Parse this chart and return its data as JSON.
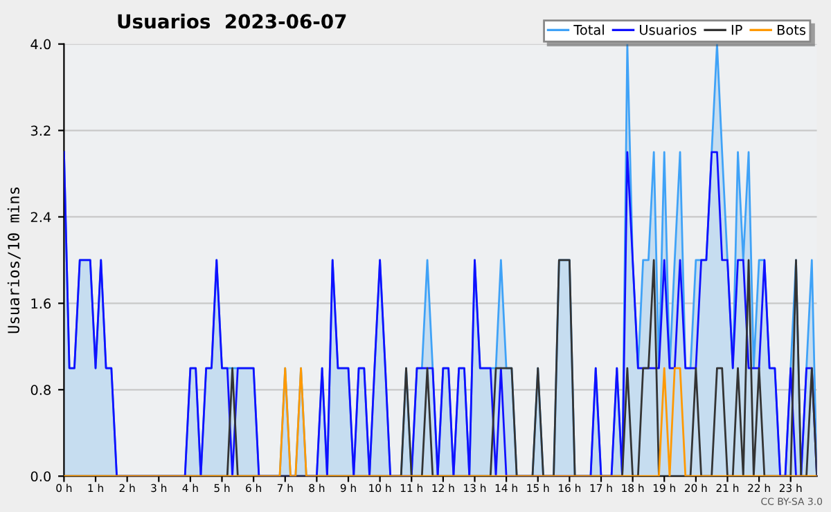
{
  "chart_data": {
    "type": "line",
    "title": "Usuarios  2023-06-07",
    "ylabel": "Usuarios/10 mins",
    "annotations": [
      "CC BY-SA 3.0"
    ],
    "x": [
      0,
      0.17,
      0.33,
      0.5,
      0.67,
      0.83,
      1,
      1.17,
      1.33,
      1.5,
      1.67,
      1.83,
      2,
      2.17,
      2.33,
      2.5,
      2.67,
      2.83,
      3,
      3.17,
      3.33,
      3.5,
      3.67,
      3.83,
      4,
      4.17,
      4.33,
      4.5,
      4.67,
      4.83,
      5,
      5.17,
      5.33,
      5.5,
      5.67,
      5.83,
      6,
      6.17,
      6.33,
      6.5,
      6.67,
      6.83,
      7,
      7.17,
      7.33,
      7.5,
      7.67,
      7.83,
      8,
      8.17,
      8.33,
      8.5,
      8.67,
      8.83,
      9,
      9.17,
      9.33,
      9.5,
      9.67,
      9.83,
      10,
      10.17,
      10.33,
      10.5,
      10.67,
      10.83,
      11,
      11.17,
      11.33,
      11.5,
      11.67,
      11.83,
      12,
      12.17,
      12.33,
      12.5,
      12.67,
      12.83,
      13,
      13.17,
      13.33,
      13.5,
      13.67,
      13.83,
      14,
      14.17,
      14.33,
      14.5,
      14.67,
      14.83,
      15,
      15.17,
      15.33,
      15.5,
      15.67,
      15.83,
      16,
      16.17,
      16.33,
      16.5,
      16.67,
      16.83,
      17,
      17.17,
      17.33,
      17.5,
      17.67,
      17.83,
      18,
      18.17,
      18.33,
      18.5,
      18.67,
      18.83,
      19,
      19.17,
      19.33,
      19.5,
      19.67,
      19.83,
      20,
      20.17,
      20.33,
      20.5,
      20.67,
      20.83,
      21,
      21.17,
      21.33,
      21.5,
      21.67,
      21.83,
      22,
      22.17,
      22.33,
      22.5,
      22.67,
      22.83,
      23,
      23.17,
      23.33,
      23.5,
      23.67,
      23.83
    ],
    "series": [
      {
        "name": "Total",
        "type": "area",
        "color": "#3fa2f7",
        "values": [
          3,
          1,
          1,
          2,
          2,
          2,
          1,
          2,
          1,
          1,
          0,
          0,
          0,
          0,
          0,
          0,
          0,
          0,
          0,
          0,
          0,
          0,
          0,
          0,
          1,
          1,
          0,
          1,
          1,
          2,
          1,
          1,
          1,
          1,
          1,
          1,
          1,
          0,
          0,
          0,
          0,
          0,
          1,
          0,
          0,
          1,
          0,
          0,
          0,
          1,
          0,
          2,
          1,
          1,
          1,
          0,
          1,
          1,
          0,
          1,
          2,
          1,
          0,
          0,
          0,
          1,
          0,
          1,
          1,
          2,
          1,
          0,
          1,
          1,
          0,
          1,
          1,
          0,
          2,
          1,
          1,
          1,
          1,
          2,
          1,
          1,
          0,
          0,
          0,
          0,
          1,
          0,
          0,
          0,
          2,
          2,
          2,
          0,
          0,
          0,
          0,
          1,
          0,
          0,
          0,
          1,
          0,
          4,
          2,
          1,
          2,
          2,
          3,
          1,
          3,
          1,
          2,
          3,
          1,
          1,
          2,
          2,
          2,
          3,
          4,
          3,
          2,
          1,
          3,
          2,
          3,
          1,
          2,
          2,
          1,
          1,
          0,
          0,
          1,
          2,
          0,
          1,
          2,
          0
        ]
      },
      {
        "name": "Usuarios",
        "color": "#1010ff",
        "values": [
          3,
          1,
          1,
          2,
          2,
          2,
          1,
          2,
          1,
          1,
          0,
          0,
          0,
          0,
          0,
          0,
          0,
          0,
          0,
          0,
          0,
          0,
          0,
          0,
          1,
          1,
          0,
          1,
          1,
          2,
          1,
          1,
          0,
          1,
          1,
          1,
          1,
          0,
          0,
          0,
          0,
          0,
          0,
          0,
          0,
          0,
          0,
          0,
          0,
          1,
          0,
          2,
          1,
          1,
          1,
          0,
          1,
          1,
          0,
          1,
          2,
          1,
          0,
          0,
          0,
          0,
          0,
          1,
          1,
          1,
          1,
          0,
          1,
          1,
          0,
          1,
          1,
          0,
          2,
          1,
          1,
          1,
          0,
          1,
          0,
          0,
          0,
          0,
          0,
          0,
          0,
          0,
          0,
          0,
          0,
          0,
          0,
          0,
          0,
          0,
          0,
          1,
          0,
          0,
          0,
          1,
          0,
          3,
          2,
          1,
          1,
          1,
          1,
          1,
          2,
          1,
          1,
          2,
          1,
          1,
          1,
          2,
          2,
          3,
          3,
          2,
          2,
          1,
          2,
          2,
          1,
          1,
          1,
          2,
          1,
          1,
          0,
          0,
          1,
          0,
          0,
          1,
          1,
          0
        ]
      },
      {
        "name": "IP",
        "color": "#333333",
        "values": [
          0,
          0,
          0,
          0,
          0,
          0,
          0,
          0,
          0,
          0,
          0,
          0,
          0,
          0,
          0,
          0,
          0,
          0,
          0,
          0,
          0,
          0,
          0,
          0,
          0,
          0,
          0,
          0,
          0,
          0,
          0,
          0,
          1,
          0,
          0,
          0,
          0,
          0,
          0,
          0,
          0,
          0,
          0,
          0,
          0,
          0,
          0,
          0,
          0,
          0,
          0,
          0,
          0,
          0,
          0,
          0,
          0,
          0,
          0,
          0,
          0,
          0,
          0,
          0,
          0,
          1,
          0,
          0,
          0,
          1,
          0,
          0,
          0,
          0,
          0,
          0,
          0,
          0,
          0,
          0,
          0,
          0,
          1,
          1,
          1,
          1,
          0,
          0,
          0,
          0,
          1,
          0,
          0,
          0,
          2,
          2,
          2,
          0,
          0,
          0,
          0,
          0,
          0,
          0,
          0,
          0,
          0,
          1,
          0,
          0,
          1,
          1,
          2,
          0,
          0,
          0,
          0,
          0,
          0,
          0,
          1,
          0,
          0,
          0,
          1,
          1,
          0,
          0,
          1,
          0,
          2,
          0,
          1,
          0,
          0,
          0,
          0,
          0,
          0,
          2,
          0,
          0,
          1,
          0
        ]
      },
      {
        "name": "Bots",
        "color": "#ff9900",
        "values": [
          0,
          0,
          0,
          0,
          0,
          0,
          0,
          0,
          0,
          0,
          0,
          0,
          0,
          0,
          0,
          0,
          0,
          0,
          0,
          0,
          0,
          0,
          0,
          0,
          0,
          0,
          0,
          0,
          0,
          0,
          0,
          0,
          0,
          0,
          0,
          0,
          0,
          0,
          0,
          0,
          0,
          0,
          1,
          0,
          0,
          1,
          0,
          0,
          0,
          0,
          0,
          0,
          0,
          0,
          0,
          0,
          0,
          0,
          0,
          0,
          0,
          0,
          0,
          0,
          0,
          0,
          0,
          0,
          0,
          0,
          0,
          0,
          0,
          0,
          0,
          0,
          0,
          0,
          0,
          0,
          0,
          0,
          0,
          0,
          0,
          0,
          0,
          0,
          0,
          0,
          0,
          0,
          0,
          0,
          0,
          0,
          0,
          0,
          0,
          0,
          0,
          0,
          0,
          0,
          0,
          0,
          0,
          0,
          0,
          0,
          0,
          0,
          0,
          0,
          1,
          0,
          1,
          1,
          0,
          0,
          0,
          0,
          0,
          0,
          0,
          0,
          0,
          0,
          0,
          0,
          0,
          0,
          0,
          0,
          0,
          0,
          0,
          0,
          0,
          0,
          0,
          0,
          0,
          0
        ]
      }
    ],
    "xlim": [
      0,
      23.83
    ],
    "xticks": [
      {
        "value": 0,
        "label": "0 h"
      },
      {
        "value": 1,
        "label": "1 h"
      },
      {
        "value": 2,
        "label": "2 h"
      },
      {
        "value": 3,
        "label": "3 h"
      },
      {
        "value": 4,
        "label": "4 h"
      },
      {
        "value": 5,
        "label": "5 h"
      },
      {
        "value": 6,
        "label": "6 h"
      },
      {
        "value": 7,
        "label": "7 h"
      },
      {
        "value": 8,
        "label": "8 h"
      },
      {
        "value": 9,
        "label": "9 h"
      },
      {
        "value": 10,
        "label": "10 h"
      },
      {
        "value": 11,
        "label": "11 h"
      },
      {
        "value": 12,
        "label": "12 h"
      },
      {
        "value": 13,
        "label": "13 h"
      },
      {
        "value": 14,
        "label": "14 h"
      },
      {
        "value": 15,
        "label": "15 h"
      },
      {
        "value": 16,
        "label": "16 h"
      },
      {
        "value": 17,
        "label": "17 h"
      },
      {
        "value": 18,
        "label": "18 h"
      },
      {
        "value": 19,
        "label": "19 h"
      },
      {
        "value": 20,
        "label": "20 h"
      },
      {
        "value": 21,
        "label": "21 h"
      },
      {
        "value": 22,
        "label": "22 h"
      },
      {
        "value": 23,
        "label": "23 h"
      }
    ],
    "ylim": [
      0,
      4
    ],
    "yticks": [
      {
        "value": 0,
        "label": "0.0"
      },
      {
        "value": 0.8,
        "label": "0.8"
      },
      {
        "value": 1.6,
        "label": "1.6"
      },
      {
        "value": 2.4,
        "label": "2.4"
      },
      {
        "value": 3.2,
        "label": "3.2"
      },
      {
        "value": 4,
        "label": "4.0"
      }
    ],
    "grid": "y",
    "legend": "top right"
  }
}
